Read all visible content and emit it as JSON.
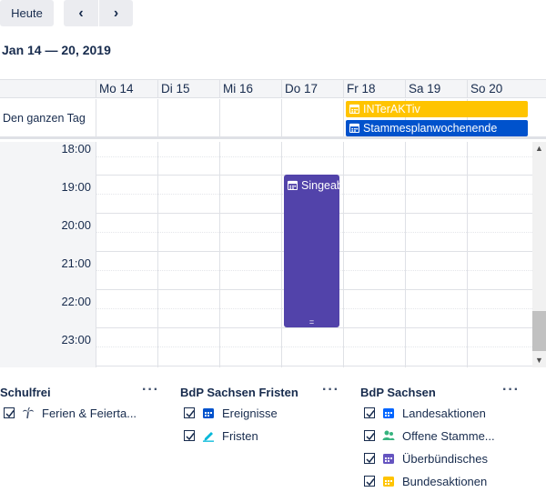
{
  "toolbar": {
    "today_label": "Heute",
    "prev_icon": "chevron-left-icon",
    "next_icon": "chevron-right-icon"
  },
  "range_title": "Jan 14 — 20, 2019",
  "calendar": {
    "days": [
      "Mo 14",
      "Di 15",
      "Mi 16",
      "Do 17",
      "Fr 18",
      "Sa 19",
      "So 20"
    ],
    "allday_label": "Den ganzen Tag",
    "allday_events": [
      {
        "title": "INTerAKTiv",
        "color": "#ffc400",
        "text_color": "#ffffff",
        "icon": "calendar-icon"
      },
      {
        "title": "Stammesplanwochenende",
        "color": "#0052cc",
        "text_color": "#ffffff",
        "icon": "calendar-icon"
      }
    ],
    "hours": [
      "18:00",
      "19:00",
      "20:00",
      "21:00",
      "22:00",
      "23:00"
    ],
    "timed_events": [
      {
        "title": "Singeabend",
        "day": "Do 17",
        "color": "#5243aa",
        "icon": "calendar-icon"
      }
    ]
  },
  "calendars": {
    "groups": [
      {
        "title": "Schulfrei",
        "items": [
          {
            "label": "Ferien & Feierta...",
            "checked": true,
            "icon": "palm-tree-icon",
            "color": "#42526e"
          }
        ]
      },
      {
        "title": "BdP Sachsen Fristen",
        "items": [
          {
            "label": "Ereignisse",
            "checked": true,
            "icon": "calendar-icon",
            "color": "#0052cc"
          },
          {
            "label": "Fristen",
            "checked": true,
            "icon": "pen-icon",
            "color": "#00b8d9"
          }
        ]
      },
      {
        "title": "BdP Sachsen",
        "items": [
          {
            "label": "Landesaktionen",
            "checked": true,
            "icon": "calendar-icon",
            "color": "#0065ff"
          },
          {
            "label": "Offene Stamme...",
            "checked": true,
            "icon": "people-icon",
            "color": "#36b37e"
          },
          {
            "label": "Überbündisches",
            "checked": true,
            "icon": "calendar-icon",
            "color": "#6554c0"
          },
          {
            "label": "Bundesaktionen",
            "checked": true,
            "icon": "calendar-icon",
            "color": "#ffc400"
          }
        ]
      }
    ],
    "more_label": "···"
  }
}
